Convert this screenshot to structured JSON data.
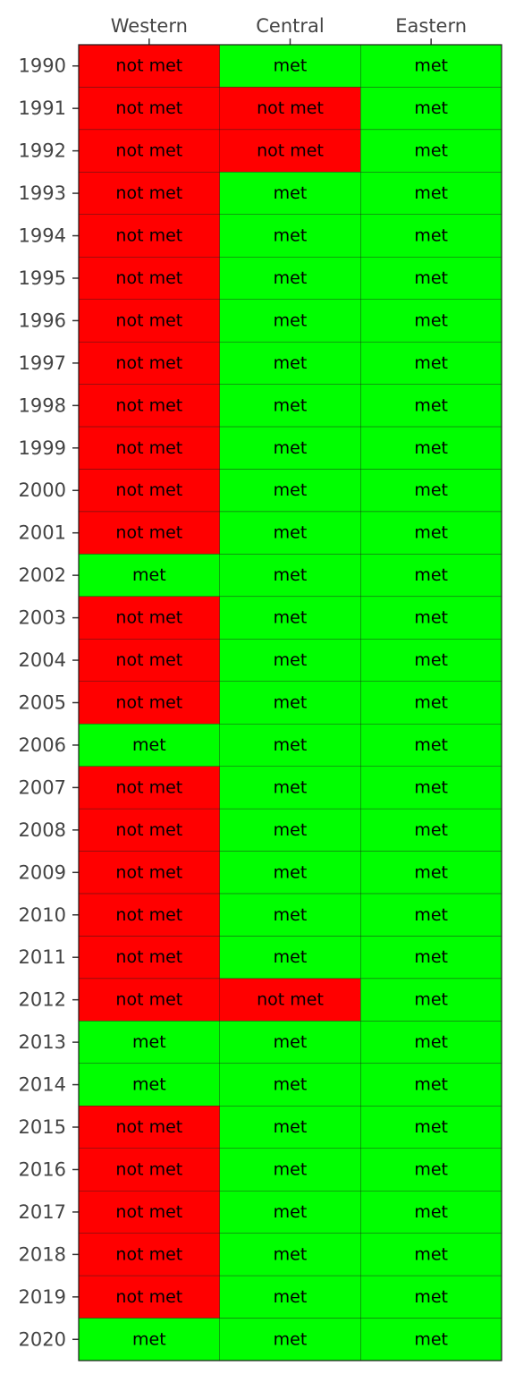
{
  "chart_data": {
    "type": "heatmap",
    "columns": [
      "Western",
      "Central",
      "Eastern"
    ],
    "rows": [
      "1990",
      "1991",
      "1992",
      "1993",
      "1994",
      "1995",
      "1996",
      "1997",
      "1998",
      "1999",
      "2000",
      "2001",
      "2002",
      "2003",
      "2004",
      "2005",
      "2006",
      "2007",
      "2008",
      "2009",
      "2010",
      "2011",
      "2012",
      "2013",
      "2014",
      "2015",
      "2016",
      "2017",
      "2018",
      "2019",
      "2020"
    ],
    "values": [
      [
        "not met",
        "met",
        "met"
      ],
      [
        "not met",
        "not met",
        "met"
      ],
      [
        "not met",
        "not met",
        "met"
      ],
      [
        "not met",
        "met",
        "met"
      ],
      [
        "not met",
        "met",
        "met"
      ],
      [
        "not met",
        "met",
        "met"
      ],
      [
        "not met",
        "met",
        "met"
      ],
      [
        "not met",
        "met",
        "met"
      ],
      [
        "not met",
        "met",
        "met"
      ],
      [
        "not met",
        "met",
        "met"
      ],
      [
        "not met",
        "met",
        "met"
      ],
      [
        "not met",
        "met",
        "met"
      ],
      [
        "met",
        "met",
        "met"
      ],
      [
        "not met",
        "met",
        "met"
      ],
      [
        "not met",
        "met",
        "met"
      ],
      [
        "not met",
        "met",
        "met"
      ],
      [
        "met",
        "met",
        "met"
      ],
      [
        "not met",
        "met",
        "met"
      ],
      [
        "not met",
        "met",
        "met"
      ],
      [
        "not met",
        "met",
        "met"
      ],
      [
        "not met",
        "met",
        "met"
      ],
      [
        "not met",
        "met",
        "met"
      ],
      [
        "not met",
        "not met",
        "met"
      ],
      [
        "met",
        "met",
        "met"
      ],
      [
        "met",
        "met",
        "met"
      ],
      [
        "not met",
        "met",
        "met"
      ],
      [
        "not met",
        "met",
        "met"
      ],
      [
        "not met",
        "met",
        "met"
      ],
      [
        "not met",
        "met",
        "met"
      ],
      [
        "not met",
        "met",
        "met"
      ],
      [
        "met",
        "met",
        "met"
      ]
    ],
    "colors": {
      "met": "#00ff00",
      "not met": "#ff0000"
    },
    "column_axis_position": "top",
    "grid": true
  }
}
